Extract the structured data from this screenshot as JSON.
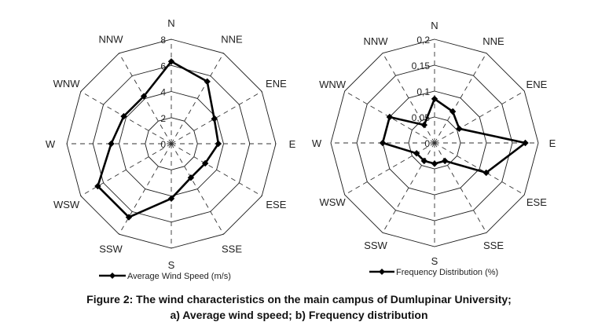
{
  "caption": {
    "line1": "Figure 2: The wind characteristics on the main campus of Dumlupinar University;",
    "line2": "a) Average wind speed; b) Frequency distribution"
  },
  "chart_data": [
    {
      "type": "radar",
      "title": "",
      "directions": [
        "N",
        "NNE",
        "ENE",
        "E",
        "ESE",
        "SSE",
        "S",
        "SSW",
        "WSW",
        "W",
        "WNW",
        "NNW"
      ],
      "ticks": [
        "0",
        "2",
        "4",
        "6",
        "8"
      ],
      "rmax": 8,
      "grid": true,
      "legend_position": "bottom",
      "series": [
        {
          "name": "Average Wind Speed (m/s)",
          "values": [
            6.3,
            5.5,
            3.8,
            3.6,
            3.0,
            3.0,
            4.2,
            6.5,
            6.5,
            4.6,
            4.2,
            4.2
          ]
        }
      ]
    },
    {
      "type": "radar",
      "title": "",
      "directions": [
        "N",
        "NNE",
        "ENE",
        "E",
        "ESE",
        "SSE",
        "S",
        "SSW",
        "WSW",
        "W",
        "WNW",
        "NNW"
      ],
      "ticks": [
        "0",
        "0,05",
        "0,1",
        "0,15",
        "0,2"
      ],
      "rmax": 0.2,
      "grid": true,
      "legend_position": "bottom",
      "series": [
        {
          "name": "Frequency Distribution (%)",
          "values": [
            0.085,
            0.07,
            0.055,
            0.175,
            0.115,
            0.04,
            0.04,
            0.04,
            0.04,
            0.1,
            0.1,
            0.04
          ]
        }
      ]
    }
  ]
}
